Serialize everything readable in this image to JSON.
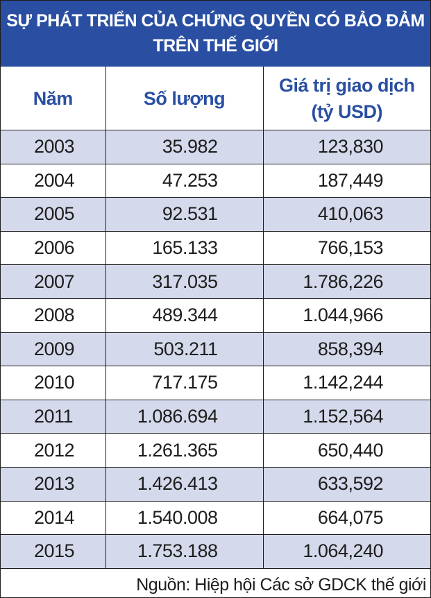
{
  "title": {
    "line1": "SỰ PHÁT TRIỂN CỦA CHỨNG QUYỀN CÓ BẢO ĐẢM",
    "line2": "TRÊN THẾ GIỚI"
  },
  "headers": {
    "year": "Năm",
    "quantity": "Số lượng",
    "value_line1": "Giá trị giao dịch",
    "value_line2": "(tỷ USD)"
  },
  "rows": [
    {
      "year": "2003",
      "quantity": "35.982",
      "value": "123,830"
    },
    {
      "year": "2004",
      "quantity": "47.253",
      "value": "187,449"
    },
    {
      "year": "2005",
      "quantity": "92.531",
      "value": "410,063"
    },
    {
      "year": "2006",
      "quantity": "165.133",
      "value": "766,153"
    },
    {
      "year": "2007",
      "quantity": "317.035",
      "value": "1.786,226"
    },
    {
      "year": "2008",
      "quantity": "489.344",
      "value": "1.044,966"
    },
    {
      "year": "2009",
      "quantity": "503.211",
      "value": "858,394"
    },
    {
      "year": "2010",
      "quantity": "717.175",
      "value": "1.142,244"
    },
    {
      "year": "2011",
      "quantity": "1.086.694",
      "value": "1.152,564"
    },
    {
      "year": "2012",
      "quantity": "1.261.365",
      "value": "650,440"
    },
    {
      "year": "2013",
      "quantity": "1.426.413",
      "value": "633,592"
    },
    {
      "year": "2014",
      "quantity": "1.540.008",
      "value": "664,075"
    },
    {
      "year": "2015",
      "quantity": "1.753.188",
      "value": "1.064,240"
    }
  ],
  "source": "Nguồn: Hiệp hội Các sở GDCK thế giới",
  "colors": {
    "header_bg": "#2a4fa2",
    "header_text": "#2a4fa2",
    "stripe": "#d5d9ec"
  }
}
